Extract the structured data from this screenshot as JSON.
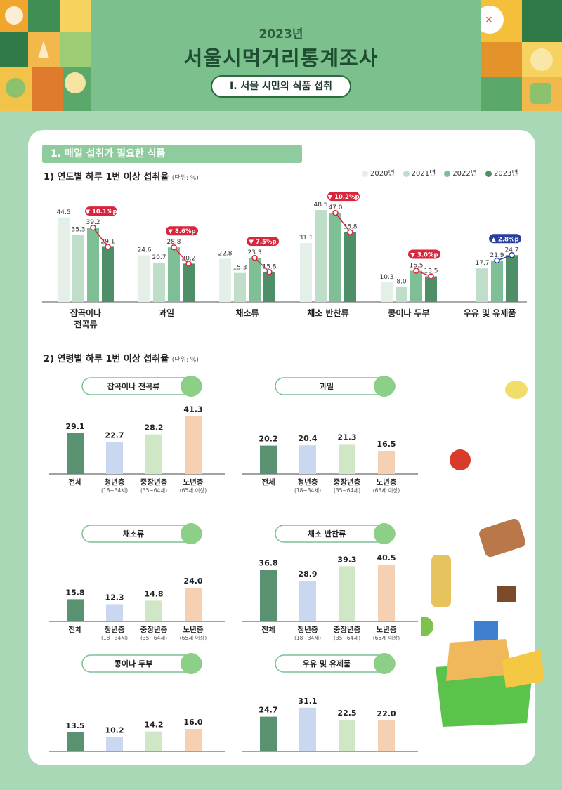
{
  "header": {
    "year": "2023년",
    "title": "서울시먹거리통계조사",
    "section_pill": "Ⅰ. 서울 시민의 식품 섭취"
  },
  "section1": {
    "title": "1. 매일 섭취가 필요한 식품"
  },
  "chart1_title": "1) 연도별 하루 1번 이상 섭취율",
  "chart2_title": "2) 연령별 하루 1번 이상 섭취율",
  "unit": "(단위: %)",
  "colors": {
    "2020": "#e3efe7",
    "2021": "#bfdec9",
    "2022": "#7fbf95",
    "2023": "#4f8f67",
    "change_down": "#d7263d",
    "change_up": "#2a3f9d",
    "all": "#5a9170",
    "youth": "#c9d8f0",
    "middle": "#cfe7c4",
    "senior": "#f5d0b3"
  },
  "chart_data": [
    {
      "type": "bar",
      "categories": [
        "잡곡이나 전곡류",
        "과일",
        "채소류",
        "채소 반찬류",
        "콩이나 두부",
        "우유 및 유제품"
      ],
      "series": [
        {
          "name": "2020년",
          "values": [
            44.5,
            24.6,
            22.8,
            31.1,
            10.3,
            null
          ]
        },
        {
          "name": "2021년",
          "values": [
            35.3,
            20.7,
            15.3,
            48.5,
            8.0,
            17.7
          ]
        },
        {
          "name": "2022년",
          "values": [
            39.2,
            28.8,
            23.3,
            47.0,
            16.5,
            21.9
          ]
        },
        {
          "name": "2023년",
          "values": [
            29.1,
            20.2,
            15.8,
            36.8,
            13.5,
            24.7
          ]
        }
      ],
      "change": [
        {
          "dir": "down",
          "label": "10.1%p"
        },
        {
          "dir": "down",
          "label": "8.6%p"
        },
        {
          "dir": "down",
          "label": "7.5%p"
        },
        {
          "dir": "down",
          "label": "10.2%p"
        },
        {
          "dir": "down",
          "label": "3.0%p"
        },
        {
          "dir": "up",
          "label": "2.8%p"
        }
      ]
    },
    {
      "type": "bar",
      "panels": [
        {
          "title": "잡곡이나 전곡류",
          "values": [
            29.1,
            22.7,
            28.2,
            41.3
          ]
        },
        {
          "title": "과일",
          "values": [
            20.2,
            20.4,
            21.3,
            16.5
          ]
        },
        {
          "title": "채소류",
          "values": [
            15.8,
            12.3,
            14.8,
            24.0
          ]
        },
        {
          "title": "채소 반찬류",
          "values": [
            36.8,
            28.9,
            39.3,
            40.5
          ]
        },
        {
          "title": "콩이나 두부",
          "values": [
            13.5,
            10.2,
            14.2,
            16.0
          ]
        },
        {
          "title": "우유 및 유제품",
          "values": [
            24.7,
            31.1,
            22.5,
            22.0
          ]
        }
      ],
      "categories": [
        {
          "label": "전체",
          "sub": ""
        },
        {
          "label": "청년층",
          "sub": "(18~34세)"
        },
        {
          "label": "중장년층",
          "sub": "(35~64세)"
        },
        {
          "label": "노년층",
          "sub": "(65세 이상)"
        }
      ]
    }
  ]
}
